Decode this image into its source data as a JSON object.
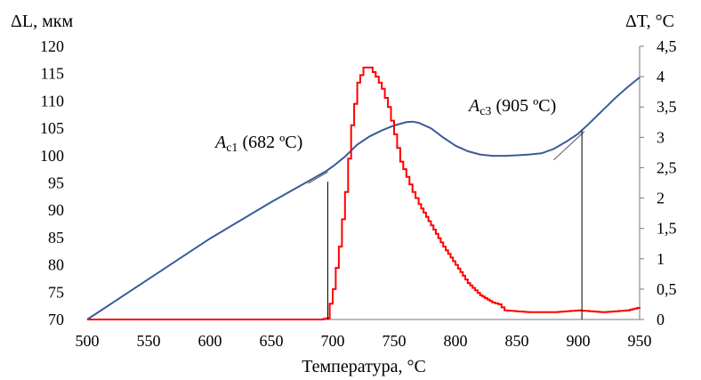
{
  "chart_data": {
    "type": "line",
    "xlabel": "Температура, °C",
    "ylabel_left": "ΔL, мкм",
    "ylabel_right": "ΔT, °C",
    "xlim": [
      500,
      950
    ],
    "ylim_left": [
      70,
      120
    ],
    "ylim_right": [
      0,
      4.5
    ],
    "x_ticks": [
      "500",
      "550",
      "600",
      "650",
      "700",
      "750",
      "800",
      "850",
      "900",
      "950"
    ],
    "y_left_ticks": [
      "70",
      "75",
      "80",
      "85",
      "90",
      "95",
      "100",
      "105",
      "110",
      "115",
      "120"
    ],
    "y_right_ticks": [
      "0",
      "0,5",
      "1",
      "1,5",
      "2",
      "2,5",
      "3",
      "3,5",
      "4",
      "4,5"
    ],
    "grid": false,
    "colors": {
      "dilatometry": "#3a5b9a",
      "dta": "#ff0000",
      "marker": "#000000"
    },
    "series": [
      {
        "axis": "left",
        "x": [
          500,
          550,
          600,
          650,
          680,
          695,
          700,
          710,
          720,
          730,
          740,
          750,
          760,
          765,
          770,
          780,
          790,
          800,
          810,
          820,
          830,
          840,
          850,
          860,
          870,
          880,
          890,
          900,
          910,
          920,
          930,
          940,
          950
        ],
        "y": [
          70,
          77.4,
          84.8,
          91.5,
          95.3,
          97.2,
          98.0,
          99.8,
          102.0,
          103.5,
          104.6,
          105.5,
          106.1,
          106.2,
          106.0,
          105.0,
          103.3,
          101.8,
          100.8,
          100.2,
          99.95,
          99.95,
          100.05,
          100.2,
          100.4,
          101.2,
          102.5,
          104.0,
          106.1,
          108.3,
          110.5,
          112.5,
          114.3
        ]
      },
      {
        "axis": "right",
        "x": [
          500,
          600,
          690,
          695,
          700,
          705,
          710,
          715,
          720,
          725,
          730,
          735,
          740,
          745,
          750,
          755,
          760,
          765,
          770,
          780,
          790,
          800,
          810,
          820,
          830,
          835,
          840,
          860,
          880,
          900,
          920,
          940,
          950
        ],
        "y": [
          0,
          0,
          0,
          0.02,
          0.5,
          1.2,
          2.1,
          3.2,
          3.9,
          4.15,
          4.15,
          4.0,
          3.8,
          3.5,
          3.05,
          2.6,
          2.35,
          2.1,
          1.9,
          1.55,
          1.2,
          0.9,
          0.6,
          0.4,
          0.28,
          0.25,
          0.15,
          0.12,
          0.12,
          0.15,
          0.12,
          0.15,
          0.2
        ]
      }
    ],
    "annotations": [
      {
        "label": "A",
        "sub": "c1",
        "text": " (682 ºC)",
        "x": 696,
        "y_left": 95.2
      },
      {
        "label": "A",
        "sub": "c3",
        "text": " (905 ºC)",
        "x": 903,
        "y_left": 104.6
      }
    ]
  }
}
